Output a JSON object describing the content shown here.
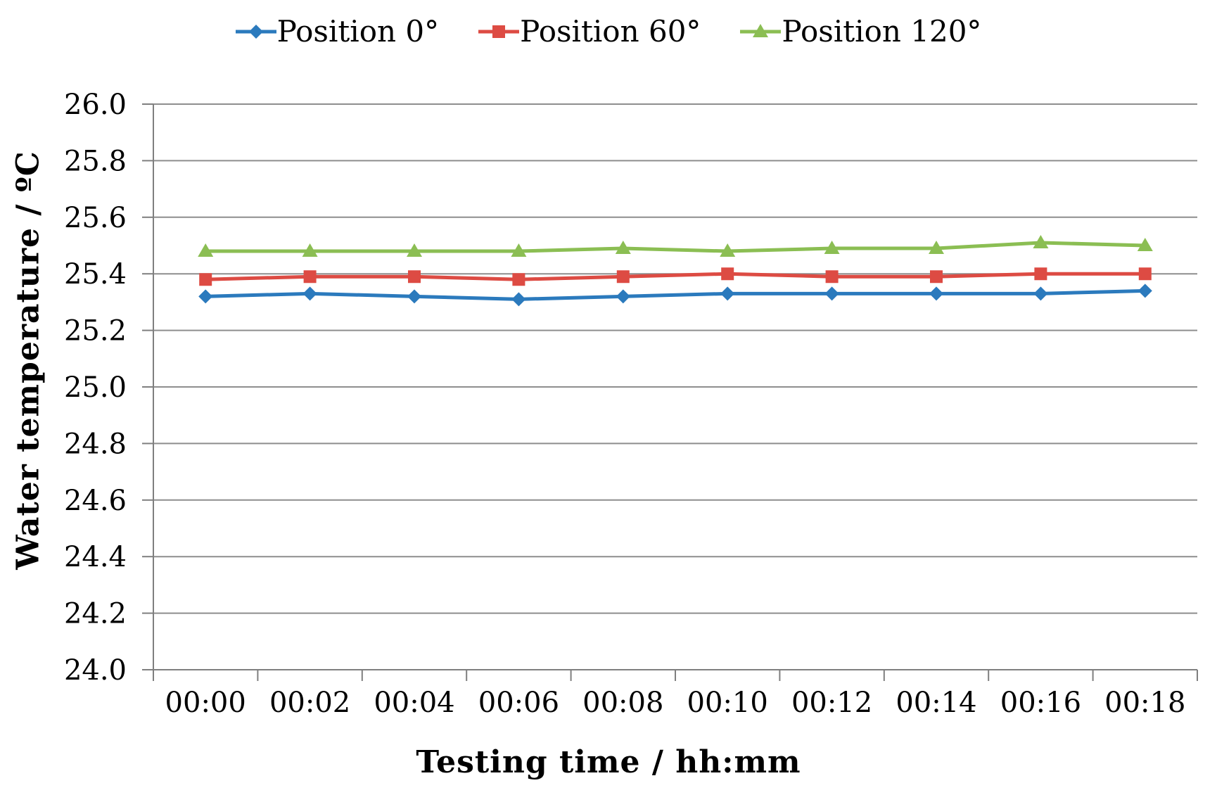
{
  "chart_data": {
    "type": "line",
    "title": "",
    "xlabel": "Testing time / hh:mm",
    "ylabel": "Water temperature / ºC",
    "x_tick_labels": [
      "00:00",
      "00:02",
      "00:04",
      "00:06",
      "00:08",
      "00:10",
      "00:12",
      "00:14",
      "00:16",
      "00:18"
    ],
    "y_tick_labels": [
      "24.0",
      "24.2",
      "24.4",
      "24.6",
      "24.8",
      "25.0",
      "25.2",
      "25.4",
      "25.6",
      "25.8",
      "26.0"
    ],
    "ylim": [
      24.0,
      26.0
    ],
    "y_step": 0.2,
    "grid": "horizontal-major",
    "legend_position": "top",
    "series": [
      {
        "name": "Position 0°",
        "marker": "diamond",
        "color": "#2B7ABD",
        "values": [
          25.32,
          25.33,
          25.32,
          25.31,
          25.32,
          25.33,
          25.33,
          25.33,
          25.33,
          25.34
        ]
      },
      {
        "name": "Position 60°",
        "marker": "square",
        "color": "#DD4B43",
        "values": [
          25.38,
          25.39,
          25.39,
          25.38,
          25.39,
          25.4,
          25.39,
          25.39,
          25.4,
          25.4
        ]
      },
      {
        "name": "Position 120°",
        "marker": "triangle",
        "color": "#8BBE53",
        "values": [
          25.48,
          25.48,
          25.48,
          25.48,
          25.49,
          25.48,
          25.49,
          25.49,
          25.51,
          25.5
        ]
      }
    ]
  },
  "colors": {
    "background": "#ffffff",
    "gridline": "#8E8E8E",
    "axis": "#7F7F7F",
    "text": "#000000"
  }
}
